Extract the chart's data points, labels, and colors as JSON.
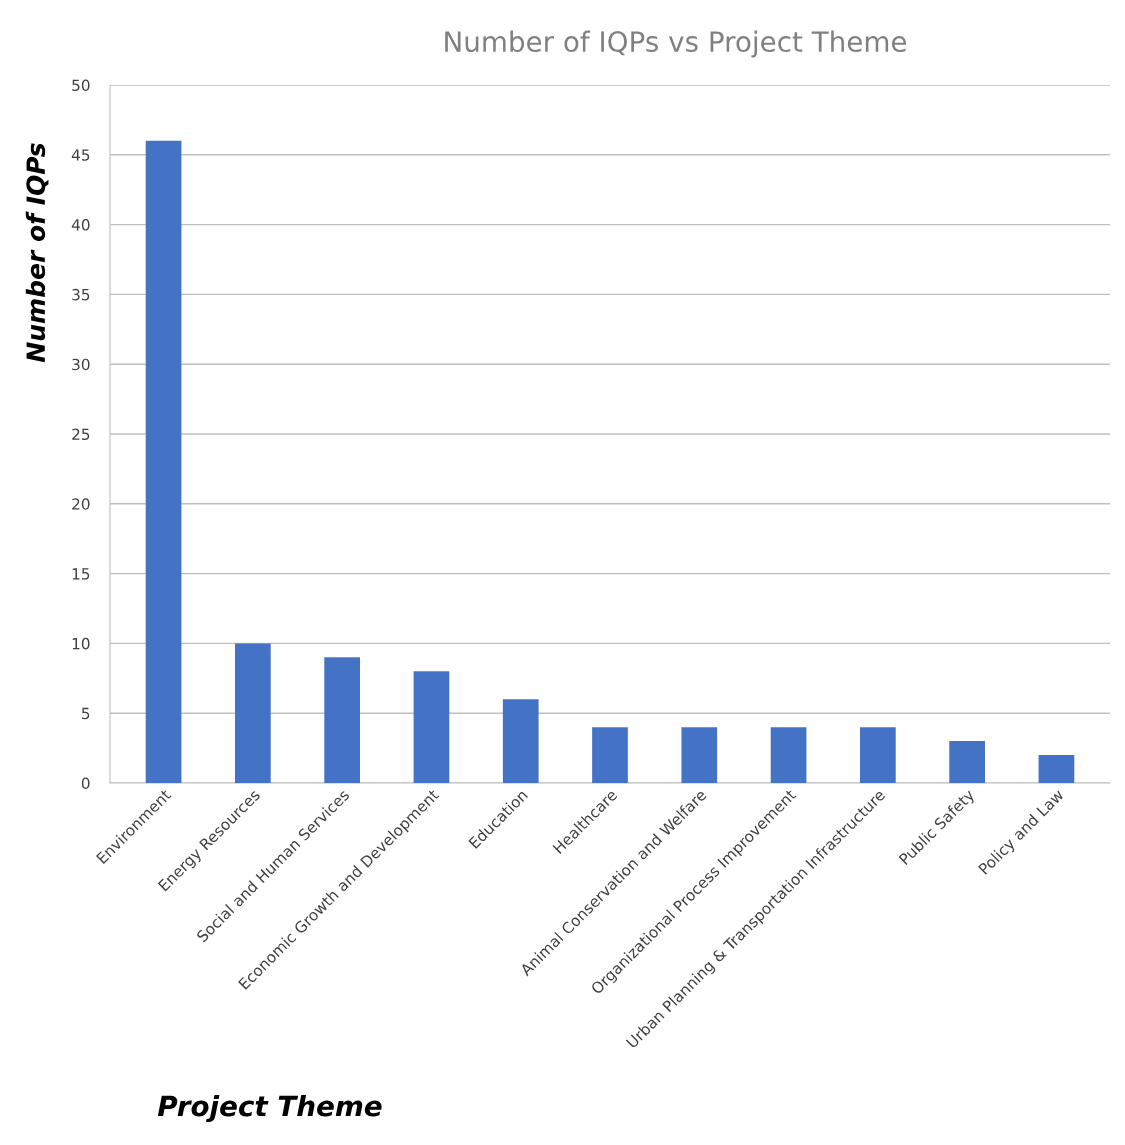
{
  "chart_data": {
    "type": "bar",
    "title": "Number of IQPs vs Project Theme",
    "xlabel": "Project Theme",
    "ylabel": "Number of IQPs",
    "categories": [
      "Environment",
      "Energy Resources",
      "Social and Human Services",
      "Economic Growth and Development",
      "Education",
      "Healthcare",
      "Animal Conservation and Welfare",
      "Organizational Process Improvement",
      "Urban Planning & Transportation Infrastructure",
      "Public Safety",
      "Policy and Law"
    ],
    "values": [
      46,
      10,
      9,
      8,
      6,
      4,
      4,
      4,
      4,
      3,
      2
    ],
    "color": "#4472c4",
    "ylim": [
      0,
      50
    ],
    "yticks": [
      0,
      5,
      10,
      15,
      20,
      25,
      30,
      35,
      40,
      45,
      50
    ],
    "grid": "y",
    "legend": false
  }
}
